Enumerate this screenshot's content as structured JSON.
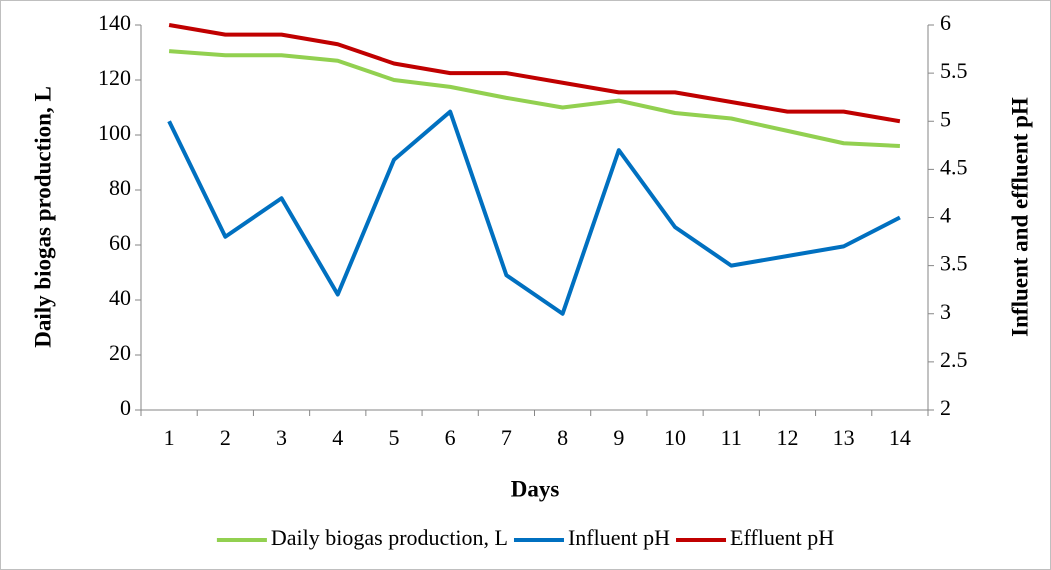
{
  "chart_data": {
    "type": "line",
    "x_label": "Days",
    "y_label": "Daily biogas production, L",
    "y2_label": "Influent and effluent pH",
    "categories": [
      "1",
      "2",
      "3",
      "4",
      "5",
      "6",
      "7",
      "8",
      "9",
      "10",
      "11",
      "12",
      "13",
      "14"
    ],
    "ylim": [
      0,
      140
    ],
    "yticks": [
      0,
      20,
      40,
      60,
      80,
      100,
      120,
      140
    ],
    "y2lim": [
      2,
      6
    ],
    "y2ticks": [
      2,
      2.5,
      3,
      3.5,
      4,
      4.5,
      5,
      5.5,
      6
    ],
    "grid": false,
    "legend": "bottom",
    "series": [
      {
        "name": "Daily biogas production, L",
        "color": "#92d050",
        "values": [
          130.5,
          129,
          129,
          127,
          120,
          117.5,
          113.5,
          110,
          112.5,
          108,
          106,
          101.5,
          97,
          96
        ]
      },
      {
        "name": "Influent pH",
        "color": "#0070c0",
        "axis": "y2",
        "values": [
          5.0,
          3.8,
          4.2,
          3.2,
          4.6,
          5.1,
          3.4,
          3.0,
          4.7,
          3.9,
          3.5,
          3.6,
          3.7,
          4.0
        ]
      },
      {
        "name": "Effluent pH",
        "color": "#c00000",
        "axis": "y2",
        "values": [
          6.0,
          5.9,
          5.9,
          5.8,
          5.6,
          5.5,
          5.5,
          5.4,
          5.3,
          5.3,
          5.2,
          5.1,
          5.1,
          5.0
        ]
      }
    ]
  }
}
